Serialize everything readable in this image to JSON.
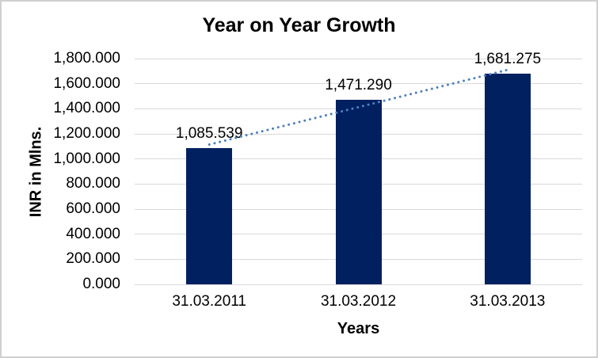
{
  "chart_data": {
    "type": "bar",
    "title": "Year on Year Growth",
    "xlabel": "Years",
    "ylabel": "INR in Mlns.",
    "categories": [
      "31.03.2011",
      "31.03.2012",
      "31.03.2013"
    ],
    "values": [
      1085.539,
      1471.29,
      1681.275
    ],
    "data_labels": [
      "1,085.539",
      "1,471.290",
      "1,681.275"
    ],
    "y_ticks": [
      "1,800.000",
      "1,600.000",
      "1,400.000",
      "1,200.000",
      "1,000.000",
      "800.000",
      "600.000",
      "400.000",
      "200.000",
      "0.000"
    ],
    "ylim": [
      0,
      1800
    ],
    "y_tick_step": 200,
    "grid": true,
    "legend": "none",
    "trendline": {
      "type": "linear",
      "style": "dotted",
      "color": "#4f81bd"
    },
    "colors": {
      "bar": "#002060",
      "gridline": "#d9d9d9",
      "text": "#000000",
      "chart_border": "#d0d0d0"
    }
  }
}
